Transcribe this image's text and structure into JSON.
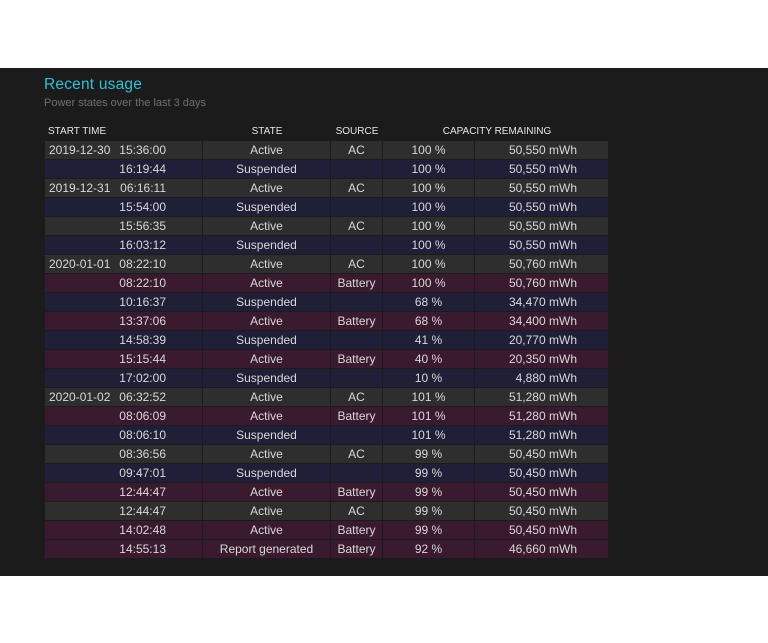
{
  "header": {
    "title": "Recent usage",
    "subtitle": "Power states over the last 3 days"
  },
  "columns": {
    "start_time": "START TIME",
    "state": "STATE",
    "source": "SOURCE",
    "capacity_remaining": "CAPACITY REMAINING"
  },
  "colors": {
    "title": "#2ec2d6",
    "row_ac": "#2e2e2e",
    "row_suspended": "#1f1f38",
    "row_battery": "#3a1a2f",
    "panel_background": "#1b1b1b"
  },
  "rows": [
    {
      "date": "2019-12-30",
      "time": "15:36:00",
      "state": "Active",
      "source": "AC",
      "percent": "100 %",
      "mwh": "50,550 mWh",
      "kind": "ac"
    },
    {
      "date": "",
      "time": "16:19:44",
      "state": "Suspended",
      "source": "",
      "percent": "100 %",
      "mwh": "50,550 mWh",
      "kind": "suspended"
    },
    {
      "date": "2019-12-31",
      "time": "06:16:11",
      "state": "Active",
      "source": "AC",
      "percent": "100 %",
      "mwh": "50,550 mWh",
      "kind": "ac"
    },
    {
      "date": "",
      "time": "15:54:00",
      "state": "Suspended",
      "source": "",
      "percent": "100 %",
      "mwh": "50,550 mWh",
      "kind": "suspended"
    },
    {
      "date": "",
      "time": "15:56:35",
      "state": "Active",
      "source": "AC",
      "percent": "100 %",
      "mwh": "50,550 mWh",
      "kind": "ac"
    },
    {
      "date": "",
      "time": "16:03:12",
      "state": "Suspended",
      "source": "",
      "percent": "100 %",
      "mwh": "50,550 mWh",
      "kind": "suspended"
    },
    {
      "date": "2020-01-01",
      "time": "08:22:10",
      "state": "Active",
      "source": "AC",
      "percent": "100 %",
      "mwh": "50,760 mWh",
      "kind": "ac"
    },
    {
      "date": "",
      "time": "08:22:10",
      "state": "Active",
      "source": "Battery",
      "percent": "100 %",
      "mwh": "50,760 mWh",
      "kind": "battery"
    },
    {
      "date": "",
      "time": "10:16:37",
      "state": "Suspended",
      "source": "",
      "percent": "68 %",
      "mwh": "34,470 mWh",
      "kind": "suspended"
    },
    {
      "date": "",
      "time": "13:37:06",
      "state": "Active",
      "source": "Battery",
      "percent": "68 %",
      "mwh": "34,400 mWh",
      "kind": "battery"
    },
    {
      "date": "",
      "time": "14:58:39",
      "state": "Suspended",
      "source": "",
      "percent": "41 %",
      "mwh": "20,770 mWh",
      "kind": "suspended"
    },
    {
      "date": "",
      "time": "15:15:44",
      "state": "Active",
      "source": "Battery",
      "percent": "40 %",
      "mwh": "20,350 mWh",
      "kind": "battery"
    },
    {
      "date": "",
      "time": "17:02:00",
      "state": "Suspended",
      "source": "",
      "percent": "10 %",
      "mwh": "4,880 mWh",
      "kind": "suspended"
    },
    {
      "date": "2020-01-02",
      "time": "06:32:52",
      "state": "Active",
      "source": "AC",
      "percent": "101 %",
      "mwh": "51,280 mWh",
      "kind": "ac"
    },
    {
      "date": "",
      "time": "08:06:09",
      "state": "Active",
      "source": "Battery",
      "percent": "101 %",
      "mwh": "51,280 mWh",
      "kind": "battery"
    },
    {
      "date": "",
      "time": "08:06:10",
      "state": "Suspended",
      "source": "",
      "percent": "101 %",
      "mwh": "51,280 mWh",
      "kind": "suspended"
    },
    {
      "date": "",
      "time": "08:36:56",
      "state": "Active",
      "source": "AC",
      "percent": "99 %",
      "mwh": "50,450 mWh",
      "kind": "ac"
    },
    {
      "date": "",
      "time": "09:47:01",
      "state": "Suspended",
      "source": "",
      "percent": "99 %",
      "mwh": "50,450 mWh",
      "kind": "suspended"
    },
    {
      "date": "",
      "time": "12:44:47",
      "state": "Active",
      "source": "Battery",
      "percent": "99 %",
      "mwh": "50,450 mWh",
      "kind": "battery"
    },
    {
      "date": "",
      "time": "12:44:47",
      "state": "Active",
      "source": "AC",
      "percent": "99 %",
      "mwh": "50,450 mWh",
      "kind": "ac"
    },
    {
      "date": "",
      "time": "14:02:48",
      "state": "Active",
      "source": "Battery",
      "percent": "99 %",
      "mwh": "50,450 mWh",
      "kind": "battery"
    },
    {
      "date": "",
      "time": "14:55:13",
      "state": "Report generated",
      "source": "Battery",
      "percent": "92 %",
      "mwh": "46,660 mWh",
      "kind": "battery"
    }
  ]
}
